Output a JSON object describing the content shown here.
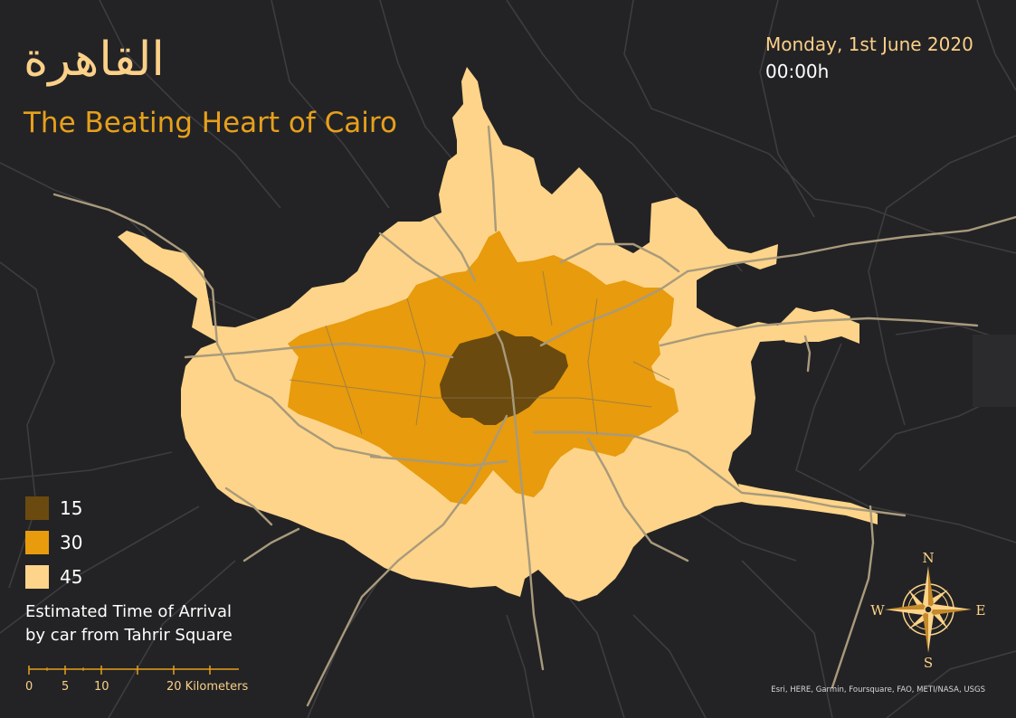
{
  "title_arabic": "القاهرة",
  "title_english": "The Beating Heart of Cairo",
  "date": "Monday, 1st June 2020",
  "time": "00:00h",
  "legend": [
    {
      "label": "15",
      "color": "#6a4a0e"
    },
    {
      "label": "30",
      "color": "#e79b0d"
    },
    {
      "label": "45",
      "color": "#fdd489"
    }
  ],
  "caption_line1": "Estimated Time of Arrival",
  "caption_line2": "by car from Tahrir Square",
  "scale": {
    "labels": [
      "0",
      "5",
      "10",
      "20 Kilometers"
    ]
  },
  "compass": {
    "n": "N",
    "s": "S",
    "e": "E",
    "w": "W"
  },
  "credits": "Esri, HERE, Garmin, Foursquare, FAO, METI/NASA, USGS",
  "colors": {
    "background": "#232325",
    "road": "#3c3c3e",
    "highway": "#a89a7c",
    "accent": "#e7a01b"
  }
}
